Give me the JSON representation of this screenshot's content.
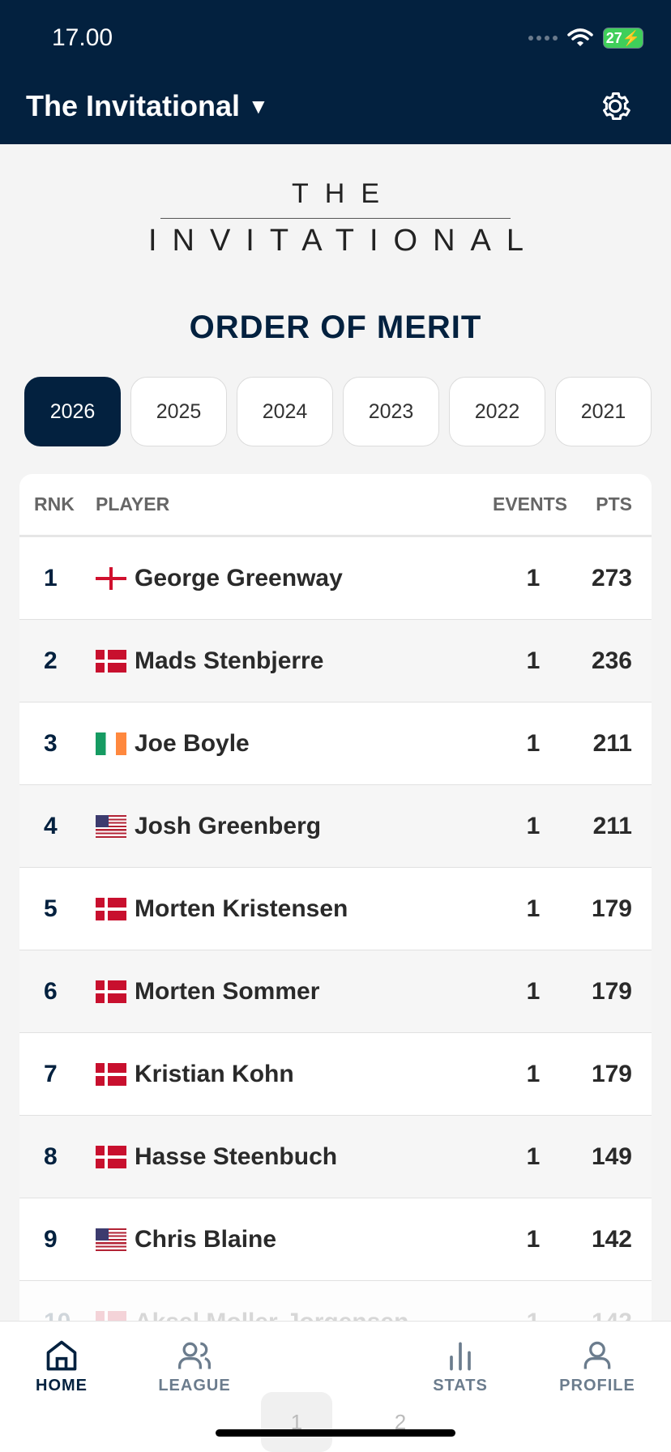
{
  "status_bar": {
    "time": "17.00",
    "battery": "27"
  },
  "header": {
    "title": "The Invitational"
  },
  "logo": {
    "top": "THE",
    "main": "INVITATIONAL"
  },
  "section_title": "ORDER OF MERIT",
  "years": [
    "2026",
    "2025",
    "2024",
    "2023",
    "2022",
    "2021"
  ],
  "table": {
    "headers": {
      "rnk": "RNK",
      "player": "PLAYER",
      "events": "EVENTS",
      "pts": "PTS"
    },
    "rows": [
      {
        "rank": "1",
        "flag": "england",
        "name": "George Greenway",
        "events": "1",
        "pts": "273"
      },
      {
        "rank": "2",
        "flag": "denmark",
        "name": "Mads Stenbjerre",
        "events": "1",
        "pts": "236"
      },
      {
        "rank": "3",
        "flag": "ireland",
        "name": "Joe Boyle",
        "events": "1",
        "pts": "211"
      },
      {
        "rank": "4",
        "flag": "usa",
        "name": "Josh Greenberg",
        "events": "1",
        "pts": "211"
      },
      {
        "rank": "5",
        "flag": "denmark",
        "name": "Morten Kristensen",
        "events": "1",
        "pts": "179"
      },
      {
        "rank": "6",
        "flag": "denmark",
        "name": "Morten Sommer",
        "events": "1",
        "pts": "179"
      },
      {
        "rank": "7",
        "flag": "denmark",
        "name": "Kristian Kohn",
        "events": "1",
        "pts": "179"
      },
      {
        "rank": "8",
        "flag": "denmark",
        "name": "Hasse Steenbuch",
        "events": "1",
        "pts": "149"
      },
      {
        "rank": "9",
        "flag": "usa",
        "name": "Chris Blaine",
        "events": "1",
        "pts": "142"
      },
      {
        "rank": "10",
        "flag": "denmark",
        "name": "Aksel Moller-Jorgensen",
        "events": "1",
        "pts": "142"
      }
    ]
  },
  "pager": [
    "1",
    "2"
  ],
  "nav": {
    "home": "HOME",
    "league": "LEAGUE",
    "stats": "STATS",
    "profile": "PROFILE"
  },
  "colors": {
    "navy": "#03213f",
    "background": "#f4f4f4",
    "muted": "#6b7c8d"
  }
}
